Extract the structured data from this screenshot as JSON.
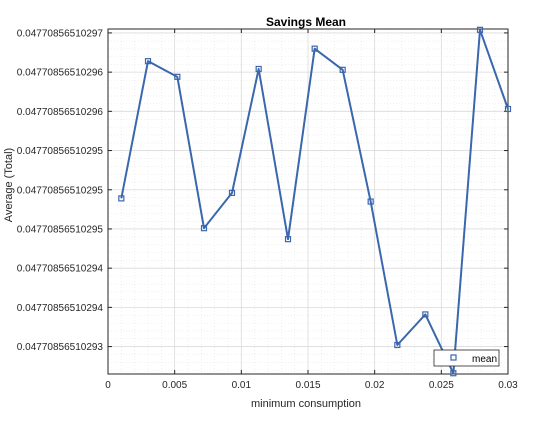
{
  "chart_data": {
    "type": "line",
    "title": "Savings Mean",
    "xlabel": "minimum consumption",
    "ylabel": "Average (Total)",
    "xlim": [
      0,
      0.03
    ],
    "xticks": [
      0,
      0.005,
      0.01,
      0.015,
      0.02,
      0.025,
      0.03
    ],
    "xtick_labels": [
      "0",
      "0.005",
      "0.01",
      "0.015",
      "0.02",
      "0.025",
      "0.03"
    ],
    "ylim": [
      0.0477085651029265,
      0.0477085651029705
    ],
    "yticks": [
      0.04770856510293,
      0.047708565102935,
      0.04770856510294,
      0.047708565102945,
      0.04770856510295,
      0.047708565102955,
      0.04770856510296,
      0.047708565102965,
      0.04770856510297
    ],
    "ytick_labels": [
      "0.04770856510293",
      "0.04770856510294",
      "0.04770856510294",
      "0.04770856510295",
      "0.04770856510295",
      "0.04770856510295",
      "0.04770856510296",
      "0.04770856510296",
      "0.04770856510297"
    ],
    "grid": true,
    "legend_position": "bottom-right",
    "color": "#3a67ad",
    "series": [
      {
        "name": "mean",
        "x": [
          0.001,
          0.003,
          0.0052,
          0.0072,
          0.0093,
          0.0113,
          0.0135,
          0.0155,
          0.0176,
          0.0197,
          0.0217,
          0.0238,
          0.0259,
          0.0279,
          0.03
        ],
        "y": [
          0.0477085651029489,
          0.0477085651029664,
          0.0477085651029644,
          0.0477085651029451,
          0.0477085651029496,
          0.0477085651029654,
          0.0477085651029437,
          0.047708565102968,
          0.0477085651029653,
          0.0477085651029485,
          0.0477085651029302,
          0.0477085651029341,
          0.0477085651029266,
          0.0477085651029704,
          0.0477085651029603
        ]
      }
    ]
  }
}
